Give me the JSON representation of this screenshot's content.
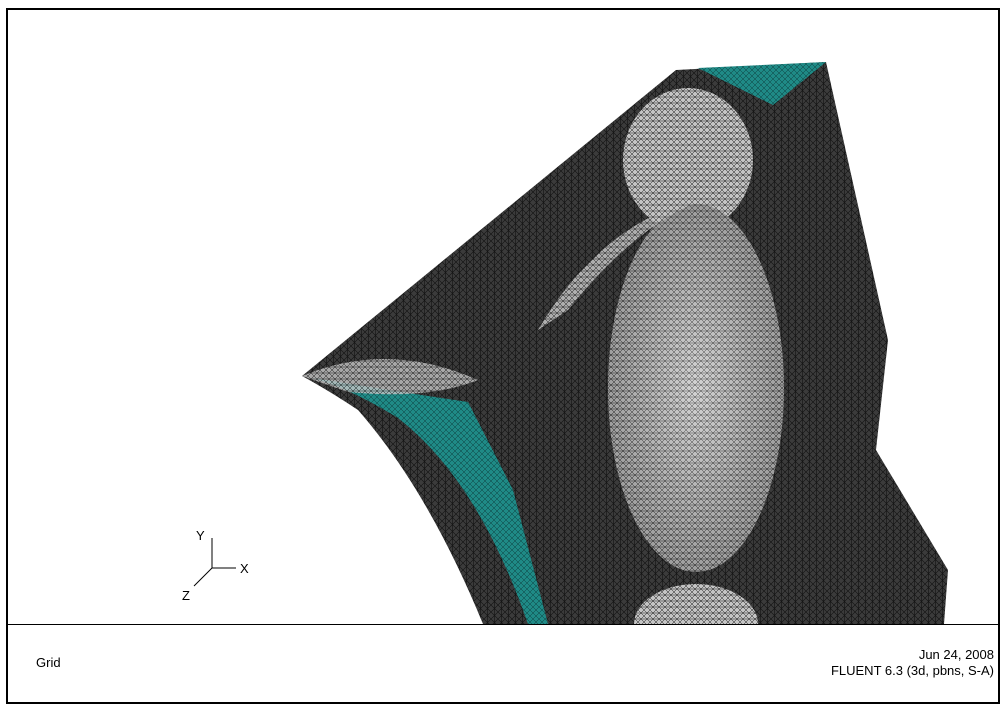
{
  "footer": {
    "title": "Grid",
    "date": "Jun 24, 2008",
    "solver": "FLUENT 6.3 (3d, pbns, S-A)"
  },
  "axes": {
    "x": "X",
    "y": "Y",
    "z": "Z"
  },
  "colors": {
    "mesh_dark": "#3a3a3a",
    "mesh_light": "#bdbdbd",
    "boundary_teal": "#1f8a86",
    "background": "#ffffff"
  }
}
